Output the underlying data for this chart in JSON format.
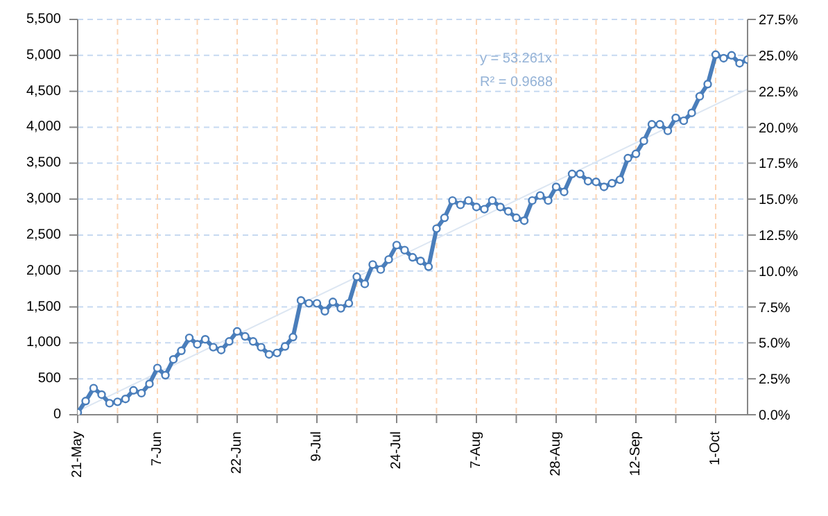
{
  "chart_data": {
    "type": "line",
    "categories": [
      "21-May",
      null,
      null,
      null,
      null,
      null,
      null,
      null,
      null,
      null,
      "7-Jun",
      null,
      null,
      null,
      null,
      null,
      null,
      null,
      null,
      null,
      "22-Jun",
      null,
      null,
      null,
      null,
      null,
      null,
      null,
      null,
      null,
      "9-Jul",
      null,
      null,
      null,
      null,
      null,
      null,
      null,
      null,
      null,
      "24-Jul",
      null,
      null,
      null,
      null,
      null,
      null,
      null,
      null,
      null,
      "7-Aug",
      null,
      null,
      null,
      null,
      null,
      null,
      null,
      null,
      null,
      "28-Aug",
      null,
      null,
      null,
      null,
      null,
      null,
      null,
      null,
      null,
      "12-Sep",
      null,
      null,
      null,
      null,
      null,
      null,
      null,
      null,
      null,
      "1-Oct",
      null,
      null,
      null,
      null
    ],
    "series": [
      {
        "color": "#4a7ebb",
        "marker": "circle",
        "values": [
          30,
          190,
          370,
          280,
          160,
          180,
          220,
          340,
          300,
          430,
          650,
          550,
          770,
          890,
          1070,
          980,
          1050,
          940,
          900,
          1020,
          1160,
          1090,
          1020,
          940,
          840,
          860,
          950,
          1080,
          1590,
          1550,
          1550,
          1440,
          1570,
          1480,
          1550,
          1920,
          1820,
          2090,
          2020,
          2160,
          2360,
          2290,
          2190,
          2140,
          2060,
          2590,
          2740,
          2980,
          2920,
          2980,
          2890,
          2860,
          2980,
          2890,
          2830,
          2740,
          2700,
          2980,
          3050,
          2980,
          3170,
          3100,
          3350,
          3350,
          3250,
          3240,
          3170,
          3220,
          3270,
          3570,
          3630,
          3810,
          4040,
          4040,
          3950,
          4130,
          4090,
          4200,
          4430,
          4600,
          5010,
          4960,
          5000,
          4890,
          4940
        ]
      },
      {
        "color": "#dce6f2",
        "marker": "none",
        "values": [
          50,
          null,
          null,
          null,
          null,
          null,
          null,
          null,
          null,
          null,
          null,
          null,
          null,
          null,
          null,
          null,
          null,
          null,
          null,
          null,
          null,
          null,
          null,
          null,
          null,
          null,
          null,
          null,
          null,
          null,
          null,
          null,
          null,
          null,
          null,
          null,
          null,
          null,
          null,
          null,
          null,
          null,
          null,
          null,
          null,
          null,
          null,
          null,
          null,
          null,
          null,
          null,
          null,
          null,
          null,
          null,
          null,
          null,
          null,
          null,
          null,
          null,
          null,
          null,
          null,
          null,
          null,
          null,
          null,
          null,
          null,
          null,
          null,
          null,
          null,
          null,
          null,
          null,
          null,
          null,
          null,
          null,
          null,
          null,
          4530
        ]
      }
    ],
    "ylim": [
      0,
      5500
    ],
    "yticks": [
      0,
      500,
      {
        "value": 1000,
        "label": "1,000"
      },
      {
        "value": 1500,
        "label": "1,500"
      },
      {
        "value": 2000,
        "label": "2,000"
      },
      {
        "value": 2500,
        "label": "2,500"
      },
      {
        "value": 3000,
        "label": "3,000"
      },
      {
        "value": 3500,
        "label": "3,500"
      },
      {
        "value": 4000,
        "label": "4,000"
      },
      {
        "value": 4500,
        "label": "4,500"
      },
      {
        "value": 5000,
        "label": "5,000"
      },
      {
        "value": 5500,
        "label": "5,500"
      }
    ],
    "y2lim": [
      0,
      27.5
    ],
    "y2ticks": [
      {
        "value": 0,
        "label": "0.0%"
      },
      {
        "value": 2.5,
        "label": "2.5%"
      },
      {
        "value": 5,
        "label": "5.0%"
      },
      {
        "value": 7.5,
        "label": "7.5%"
      },
      {
        "value": 10,
        "label": "10.0%"
      },
      {
        "value": 12.5,
        "label": "12.5%"
      },
      {
        "value": 15,
        "label": "15.0%"
      },
      {
        "value": 17.5,
        "label": "17.5%"
      },
      {
        "value": 20,
        "label": "20.0%"
      },
      {
        "value": 22.5,
        "label": "22.5%"
      },
      {
        "value": 25,
        "label": "25.0%"
      },
      {
        "value": 27.5,
        "label": "27.5%"
      }
    ],
    "grid": true,
    "annotations": [
      "y = 53.261x",
      "R² = 0.9688"
    ]
  }
}
